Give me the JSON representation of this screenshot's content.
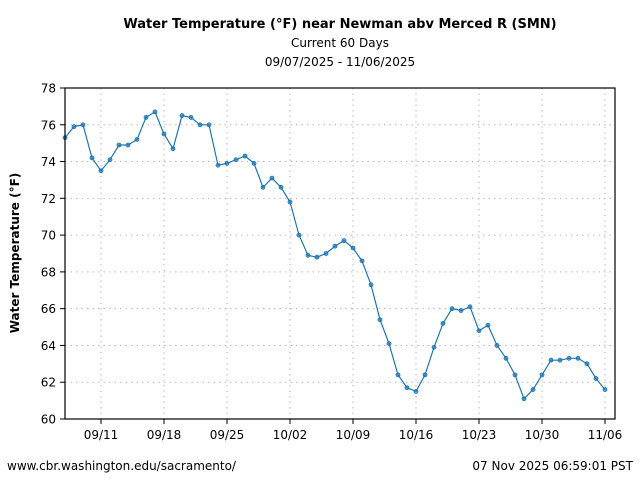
{
  "chart_data": {
    "type": "line",
    "title": "Water Temperature (°F) near Newman abv Merced R (SMN)",
    "subtitle": "Current 60 Days",
    "date_range": "09/07/2025 - 11/06/2025",
    "xlabel": "",
    "ylabel": "Water Temperature (°F)",
    "ylim": [
      60,
      78
    ],
    "yticks": [
      60,
      62,
      64,
      66,
      68,
      70,
      72,
      74,
      76,
      78
    ],
    "xlim": [
      "2025-09-07",
      "2025-11-06"
    ],
    "xticks": [
      {
        "date": "2025-09-11",
        "label": "09/11"
      },
      {
        "date": "2025-09-18",
        "label": "09/18"
      },
      {
        "date": "2025-09-25",
        "label": "09/25"
      },
      {
        "date": "2025-10-02",
        "label": "10/02"
      },
      {
        "date": "2025-10-09",
        "label": "10/09"
      },
      {
        "date": "2025-10-16",
        "label": "10/16"
      },
      {
        "date": "2025-10-23",
        "label": "10/23"
      },
      {
        "date": "2025-10-30",
        "label": "10/30"
      },
      {
        "date": "2025-11-06",
        "label": "11/06"
      }
    ],
    "grid": true,
    "series_color": "#1f77b4",
    "x": [
      "2025-09-07",
      "2025-09-08",
      "2025-09-09",
      "2025-09-10",
      "2025-09-11",
      "2025-09-12",
      "2025-09-13",
      "2025-09-14",
      "2025-09-15",
      "2025-09-16",
      "2025-09-17",
      "2025-09-18",
      "2025-09-19",
      "2025-09-20",
      "2025-09-21",
      "2025-09-22",
      "2025-09-23",
      "2025-09-24",
      "2025-09-25",
      "2025-09-26",
      "2025-09-27",
      "2025-09-28",
      "2025-09-29",
      "2025-09-30",
      "2025-10-01",
      "2025-10-02",
      "2025-10-03",
      "2025-10-04",
      "2025-10-05",
      "2025-10-06",
      "2025-10-07",
      "2025-10-08",
      "2025-10-09",
      "2025-10-10",
      "2025-10-11",
      "2025-10-12",
      "2025-10-13",
      "2025-10-14",
      "2025-10-15",
      "2025-10-16",
      "2025-10-17",
      "2025-10-18",
      "2025-10-19",
      "2025-10-20",
      "2025-10-21",
      "2025-10-22",
      "2025-10-23",
      "2025-10-24",
      "2025-10-25",
      "2025-10-26",
      "2025-10-27",
      "2025-10-28",
      "2025-10-29",
      "2025-10-30",
      "2025-10-31",
      "2025-11-01",
      "2025-11-02",
      "2025-11-03",
      "2025-11-04",
      "2025-11-05",
      "2025-11-06"
    ],
    "values": [
      75.3,
      75.9,
      76.0,
      74.2,
      73.5,
      74.1,
      74.9,
      74.9,
      75.2,
      76.4,
      76.7,
      75.5,
      74.7,
      76.5,
      76.4,
      76.0,
      76.0,
      73.8,
      73.9,
      74.1,
      74.3,
      73.9,
      72.6,
      73.1,
      72.6,
      71.8,
      70.0,
      68.9,
      68.8,
      69.0,
      69.4,
      69.7,
      69.3,
      68.6,
      67.3,
      65.4,
      64.1,
      62.4,
      61.7,
      61.5,
      62.4,
      63.9,
      65.2,
      66.0,
      65.9,
      66.1,
      64.8,
      65.1,
      64.0,
      63.3,
      62.4,
      61.1,
      61.6,
      62.4,
      63.2,
      63.2,
      63.3,
      63.3,
      63.0,
      62.2,
      61.6
    ]
  },
  "footer": {
    "source": "www.cbr.washington.edu/sacramento/",
    "timestamp": "07 Nov 2025 06:59:01 PST"
  }
}
